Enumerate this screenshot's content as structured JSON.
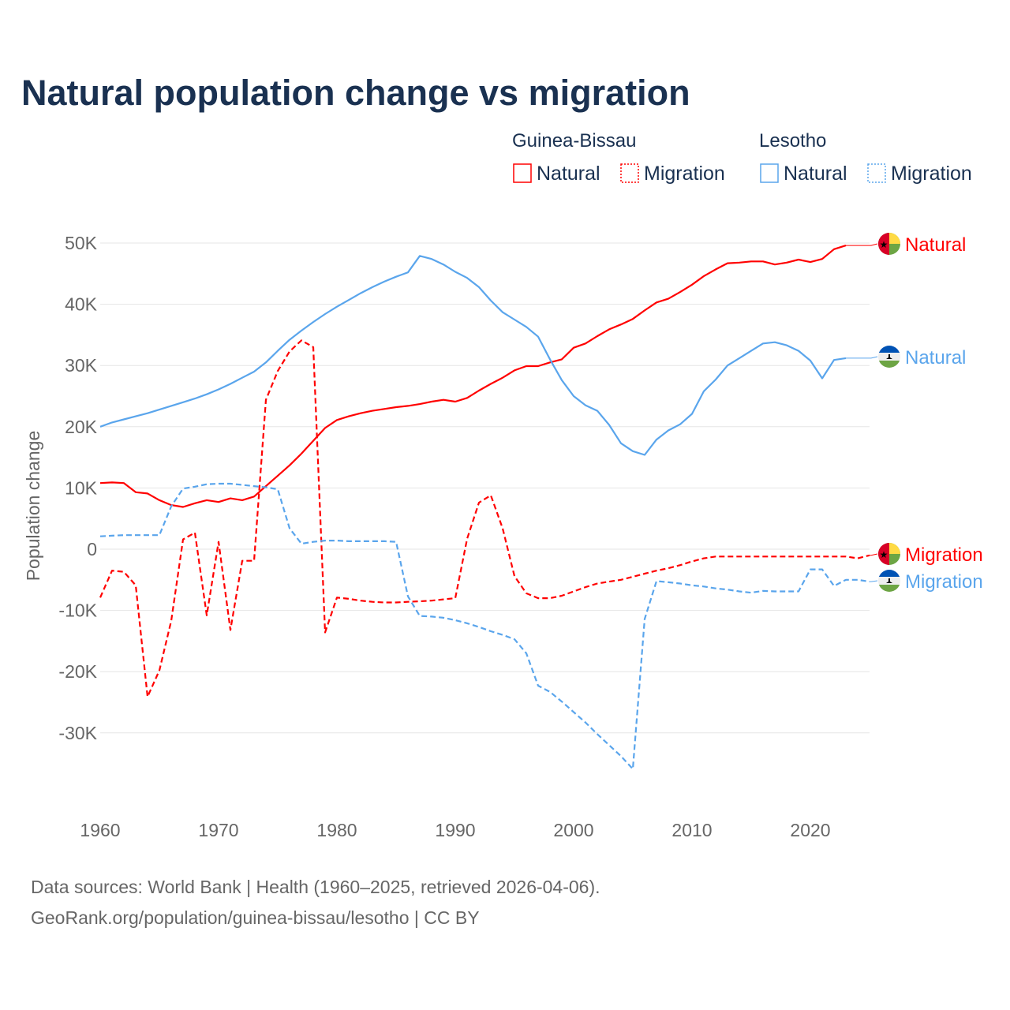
{
  "colors": {
    "guinea_bissau": "#ff0000",
    "lesotho": "#5aa5ec",
    "title": "#1a3151",
    "text": "#666666",
    "grid": "#e6e6e6"
  },
  "chart_data": {
    "type": "line",
    "title": "Natural population change vs migration",
    "xlabel": "",
    "ylabel": "Population change",
    "xlim": [
      1960,
      2025
    ],
    "ylim": [
      -40000,
      50000
    ],
    "grid": true,
    "legend_placement": "top-right",
    "x_ticks": [
      {
        "value": 1960,
        "label": "1960"
      },
      {
        "value": 1970,
        "label": "1970"
      },
      {
        "value": 1980,
        "label": "1980"
      },
      {
        "value": 1990,
        "label": "1990"
      },
      {
        "value": 2000,
        "label": "2000"
      },
      {
        "value": 2010,
        "label": "2010"
      },
      {
        "value": 2020,
        "label": "2020"
      }
    ],
    "y_ticks": [
      {
        "value": 50000,
        "label": "50K"
      },
      {
        "value": 40000,
        "label": "40K"
      },
      {
        "value": 30000,
        "label": "30K"
      },
      {
        "value": 20000,
        "label": "20K"
      },
      {
        "value": 10000,
        "label": "10K"
      },
      {
        "value": 0,
        "label": "0"
      },
      {
        "value": -10000,
        "label": "-10K"
      },
      {
        "value": -20000,
        "label": "-20K"
      },
      {
        "value": -30000,
        "label": "-30K"
      }
    ],
    "legend": {
      "groups": [
        {
          "country": "Guinea-Bissau",
          "items": [
            "Natural",
            "Migration"
          ]
        },
        {
          "country": "Lesotho",
          "items": [
            "Natural",
            "Migration"
          ]
        }
      ]
    },
    "series": [
      {
        "name": "Natural",
        "country": "Guinea-Bissau",
        "color_key": "guinea_bissau",
        "dashed": false,
        "start_year": 1960,
        "end_label": "Natural",
        "values": [
          10800,
          10900,
          10800,
          9300,
          9100,
          8000,
          7200,
          6900,
          7500,
          8000,
          7700,
          8300,
          8000,
          8600,
          10300,
          12000,
          13700,
          15600,
          17700,
          19800,
          21100,
          21700,
          22200,
          22600,
          22900,
          23200,
          23400,
          23700,
          24100,
          24400,
          24100,
          24700,
          25900,
          27000,
          28000,
          29200,
          29900,
          29900,
          30500,
          31000,
          32900,
          33600,
          34800,
          35900,
          36700,
          37600,
          39000,
          40300,
          40900,
          42000,
          43200,
          44600,
          45700,
          46700,
          46800,
          47000,
          47000,
          46500,
          46800,
          47300,
          46900,
          47400,
          49000,
          49600
        ]
      },
      {
        "name": "Migration",
        "country": "Guinea-Bissau",
        "color_key": "guinea_bissau",
        "dashed": true,
        "start_year": 1960,
        "end_label": "Migration",
        "values": [
          -7900,
          -3500,
          -3700,
          -5900,
          -24100,
          -19800,
          -11700,
          1600,
          2700,
          -10800,
          1200,
          -13200,
          -1900,
          -1900,
          24400,
          29100,
          32300,
          34100,
          33000,
          -13600,
          -7900,
          -8100,
          -8400,
          -8600,
          -8700,
          -8700,
          -8600,
          -8500,
          -8400,
          -8200,
          -8000,
          1700,
          7600,
          8800,
          3400,
          -4400,
          -7200,
          -8000,
          -8000,
          -7600,
          -6900,
          -6200,
          -5600,
          -5300,
          -5000,
          -4500,
          -4000,
          -3500,
          -3100,
          -2600,
          -2000,
          -1500,
          -1200,
          -1200,
          -1200,
          -1200,
          -1200,
          -1200,
          -1200,
          -1200,
          -1200,
          -1200,
          -1200,
          -1200,
          -1500,
          -1000
        ]
      },
      {
        "name": "Natural",
        "country": "Lesotho",
        "color_key": "lesotho",
        "dashed": false,
        "start_year": 1960,
        "end_label": "Natural",
        "values": [
          20000,
          20700,
          21200,
          21700,
          22200,
          22800,
          23400,
          24000,
          24600,
          25300,
          26100,
          27000,
          28000,
          29000,
          30500,
          32400,
          34200,
          35700,
          37100,
          38400,
          39600,
          40700,
          41800,
          42800,
          43700,
          44500,
          45200,
          47900,
          47400,
          46500,
          45300,
          44300,
          42800,
          40600,
          38700,
          37500,
          36300,
          34700,
          31000,
          27600,
          25000,
          23500,
          22600,
          20300,
          17300,
          16000,
          15400,
          17900,
          19400,
          20400,
          22100,
          25800,
          27700,
          30000,
          31200,
          32400,
          33600,
          33800,
          33300,
          32400,
          30800,
          27900,
          30900,
          31200
        ]
      },
      {
        "name": "Migration",
        "country": "Lesotho",
        "color_key": "lesotho",
        "dashed": true,
        "start_year": 1960,
        "end_label": "Migration",
        "values": [
          2100,
          2200,
          2300,
          2300,
          2300,
          2300,
          7000,
          9900,
          10200,
          10600,
          10700,
          10700,
          10500,
          10300,
          10100,
          9800,
          3400,
          900,
          1200,
          1400,
          1400,
          1300,
          1300,
          1300,
          1300,
          1200,
          -7700,
          -10900,
          -11000,
          -11200,
          -11600,
          -12100,
          -12700,
          -13400,
          -14000,
          -14700,
          -17000,
          -22300,
          -23300,
          -24900,
          -26600,
          -28300,
          -30200,
          -32000,
          -33800,
          -35900,
          -11400,
          -5200,
          -5400,
          -5600,
          -5900,
          -6100,
          -6400,
          -6600,
          -6900,
          -7100,
          -6800,
          -6900,
          -6900,
          -6900,
          -3300,
          -3300,
          -6000,
          -5000,
          -5000,
          -5300
        ]
      }
    ]
  },
  "source": {
    "line1": "Data sources: World Bank | Health (1960–2025, retrieved 2026-04-06).",
    "line2": "GeoRank.org/population/guinea-bissau/lesotho | CC BY"
  }
}
